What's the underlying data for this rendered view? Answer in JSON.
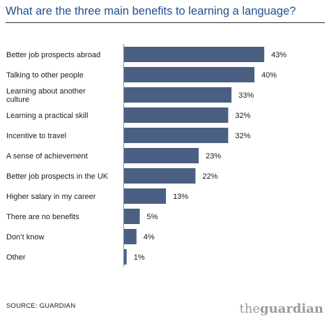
{
  "title": "What are the three main benefits to learning a language?",
  "source": "SOURCE: GUARDIAN",
  "brand": {
    "the": "the",
    "guardian": "guardian"
  },
  "colors": {
    "bar": "#4a5f82",
    "title": "#1f4f8f",
    "axis": "#8a8a8a"
  },
  "chart_data": {
    "type": "bar",
    "orientation": "horizontal",
    "title": "What are the three main benefits to learning a language?",
    "categories": [
      [
        "Better job prospects abroad"
      ],
      [
        "Talking to other people"
      ],
      [
        "Learning about another",
        "culture"
      ],
      [
        "Learning a practical skill"
      ],
      [
        "Incentive to travel"
      ],
      [
        "A sense of achievement"
      ],
      [
        "Better job prospects in the UK"
      ],
      [
        "Higher salary in my career"
      ],
      [
        "There are no benefits"
      ],
      [
        "Don’t know"
      ],
      [
        "Other"
      ]
    ],
    "values": [
      43,
      40,
      33,
      32,
      32,
      23,
      22,
      13,
      5,
      4,
      1
    ],
    "value_labels": [
      "43%",
      "40%",
      "33%",
      "32%",
      "32%",
      "23%",
      "22%",
      "13%",
      "5%",
      "4%",
      "1%"
    ],
    "unit": "%",
    "xlim": [
      0,
      50
    ],
    "grid": false
  }
}
